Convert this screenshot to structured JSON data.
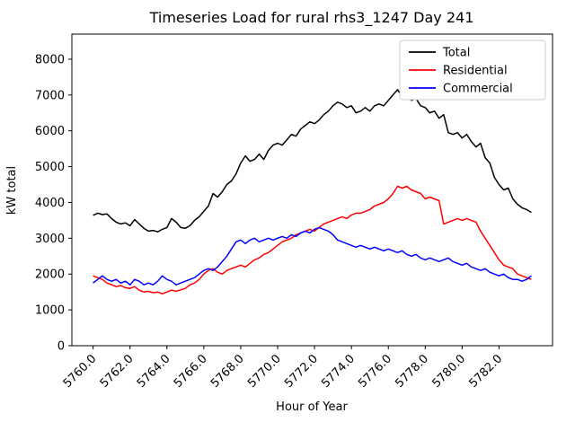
{
  "chart_data": {
    "type": "line",
    "title": "Timeseries Load for rural rhs3_1247  Day 241",
    "xlabel": "Hour of Year",
    "ylabel": "kW total",
    "xlim": [
      5758.85,
      5784.9
    ],
    "ylim": [
      0,
      8700
    ],
    "grid": false,
    "legend_position": "upper right",
    "x_ticks": [
      5760,
      5762,
      5764,
      5766,
      5768,
      5770,
      5772,
      5774,
      5776,
      5778,
      5780,
      5782
    ],
    "x_tick_labels": [
      "5760.0",
      "5762.0",
      "5764.0",
      "5766.0",
      "5768.0",
      "5770.0",
      "5772.0",
      "5774.0",
      "5776.0",
      "5778.0",
      "5780.0",
      "5782.0"
    ],
    "y_ticks": [
      0,
      1000,
      2000,
      3000,
      4000,
      5000,
      6000,
      7000,
      8000
    ],
    "y_tick_labels": [
      "0",
      "1000",
      "2000",
      "3000",
      "4000",
      "5000",
      "6000",
      "7000",
      "8000"
    ],
    "x": [
      5760.0,
      5760.25,
      5760.5,
      5760.75,
      5761.0,
      5761.25,
      5761.5,
      5761.75,
      5762.0,
      5762.25,
      5762.5,
      5762.75,
      5763.0,
      5763.25,
      5763.5,
      5763.75,
      5764.0,
      5764.25,
      5764.5,
      5764.75,
      5765.0,
      5765.25,
      5765.5,
      5765.75,
      5766.0,
      5766.25,
      5766.5,
      5766.75,
      5767.0,
      5767.25,
      5767.5,
      5767.75,
      5768.0,
      5768.25,
      5768.5,
      5768.75,
      5769.0,
      5769.25,
      5769.5,
      5769.75,
      5770.0,
      5770.25,
      5770.5,
      5770.75,
      5771.0,
      5771.25,
      5771.5,
      5771.75,
      5772.0,
      5772.25,
      5772.5,
      5772.75,
      5773.0,
      5773.25,
      5773.5,
      5773.75,
      5774.0,
      5774.25,
      5774.5,
      5774.75,
      5775.0,
      5775.25,
      5775.5,
      5775.75,
      5776.0,
      5776.25,
      5776.5,
      5776.75,
      5777.0,
      5777.25,
      5777.5,
      5777.75,
      5778.0,
      5778.25,
      5778.5,
      5778.75,
      5779.0,
      5779.25,
      5779.5,
      5779.75,
      5780.0,
      5780.25,
      5780.5,
      5780.75,
      5781.0,
      5781.25,
      5781.5,
      5781.75,
      5782.0,
      5782.25,
      5782.5,
      5782.75,
      5783.0,
      5783.25,
      5783.5,
      5783.75
    ],
    "series": [
      {
        "name": "Total",
        "color": "#000000",
        "values": [
          3640,
          3700,
          3660,
          3680,
          3550,
          3450,
          3400,
          3430,
          3350,
          3520,
          3400,
          3280,
          3200,
          3220,
          3180,
          3250,
          3300,
          3550,
          3450,
          3300,
          3280,
          3350,
          3500,
          3600,
          3750,
          3900,
          4250,
          4150,
          4300,
          4500,
          4600,
          4800,
          5100,
          5300,
          5150,
          5200,
          5350,
          5200,
          5450,
          5600,
          5650,
          5600,
          5750,
          5900,
          5850,
          6050,
          6150,
          6250,
          6200,
          6300,
          6450,
          6550,
          6700,
          6800,
          6750,
          6650,
          6700,
          6500,
          6550,
          6650,
          6550,
          6700,
          6750,
          6700,
          6850,
          7000,
          7150,
          6950,
          7000,
          6850,
          6900,
          6700,
          6650,
          6500,
          6550,
          6350,
          6450,
          5950,
          5900,
          5950,
          5800,
          5900,
          5700,
          5550,
          5650,
          5250,
          5100,
          4700,
          4500,
          4350,
          4400,
          4100,
          3950,
          3850,
          3800,
          3720
        ]
      },
      {
        "name": "Residential",
        "color": "#ff0000",
        "values": [
          1950,
          1900,
          1850,
          1750,
          1700,
          1650,
          1680,
          1620,
          1600,
          1650,
          1550,
          1500,
          1520,
          1480,
          1500,
          1450,
          1500,
          1550,
          1520,
          1560,
          1600,
          1700,
          1750,
          1850,
          2000,
          2100,
          2150,
          2050,
          2000,
          2100,
          2150,
          2200,
          2250,
          2200,
          2300,
          2400,
          2450,
          2550,
          2600,
          2700,
          2800,
          2900,
          2950,
          3000,
          3100,
          3150,
          3200,
          3250,
          3200,
          3300,
          3400,
          3450,
          3500,
          3550,
          3600,
          3550,
          3650,
          3700,
          3700,
          3750,
          3800,
          3900,
          3950,
          4000,
          4100,
          4250,
          4450,
          4400,
          4450,
          4350,
          4300,
          4250,
          4100,
          4150,
          4100,
          4050,
          3400,
          3450,
          3500,
          3550,
          3500,
          3550,
          3500,
          3450,
          3200,
          3000,
          2800,
          2600,
          2400,
          2250,
          2200,
          2150,
          2000,
          1950,
          1900,
          1850
        ]
      },
      {
        "name": "Commercial",
        "color": "#0000ff",
        "values": [
          1750,
          1850,
          1950,
          1850,
          1800,
          1850,
          1750,
          1800,
          1700,
          1850,
          1800,
          1700,
          1750,
          1700,
          1800,
          1950,
          1850,
          1800,
          1700,
          1750,
          1800,
          1850,
          1900,
          2000,
          2100,
          2150,
          2100,
          2200,
          2350,
          2500,
          2700,
          2900,
          2950,
          2850,
          2950,
          3000,
          2900,
          2950,
          3000,
          2950,
          3000,
          3050,
          3000,
          3100,
          3050,
          3150,
          3200,
          3150,
          3250,
          3300,
          3250,
          3200,
          3100,
          2950,
          2900,
          2850,
          2800,
          2750,
          2800,
          2750,
          2700,
          2750,
          2700,
          2650,
          2700,
          2650,
          2600,
          2650,
          2550,
          2500,
          2550,
          2450,
          2400,
          2450,
          2400,
          2350,
          2400,
          2450,
          2350,
          2300,
          2250,
          2300,
          2200,
          2150,
          2100,
          2150,
          2050,
          2000,
          1950,
          2000,
          1900,
          1850,
          1850,
          1800,
          1850,
          1950
        ]
      }
    ]
  }
}
